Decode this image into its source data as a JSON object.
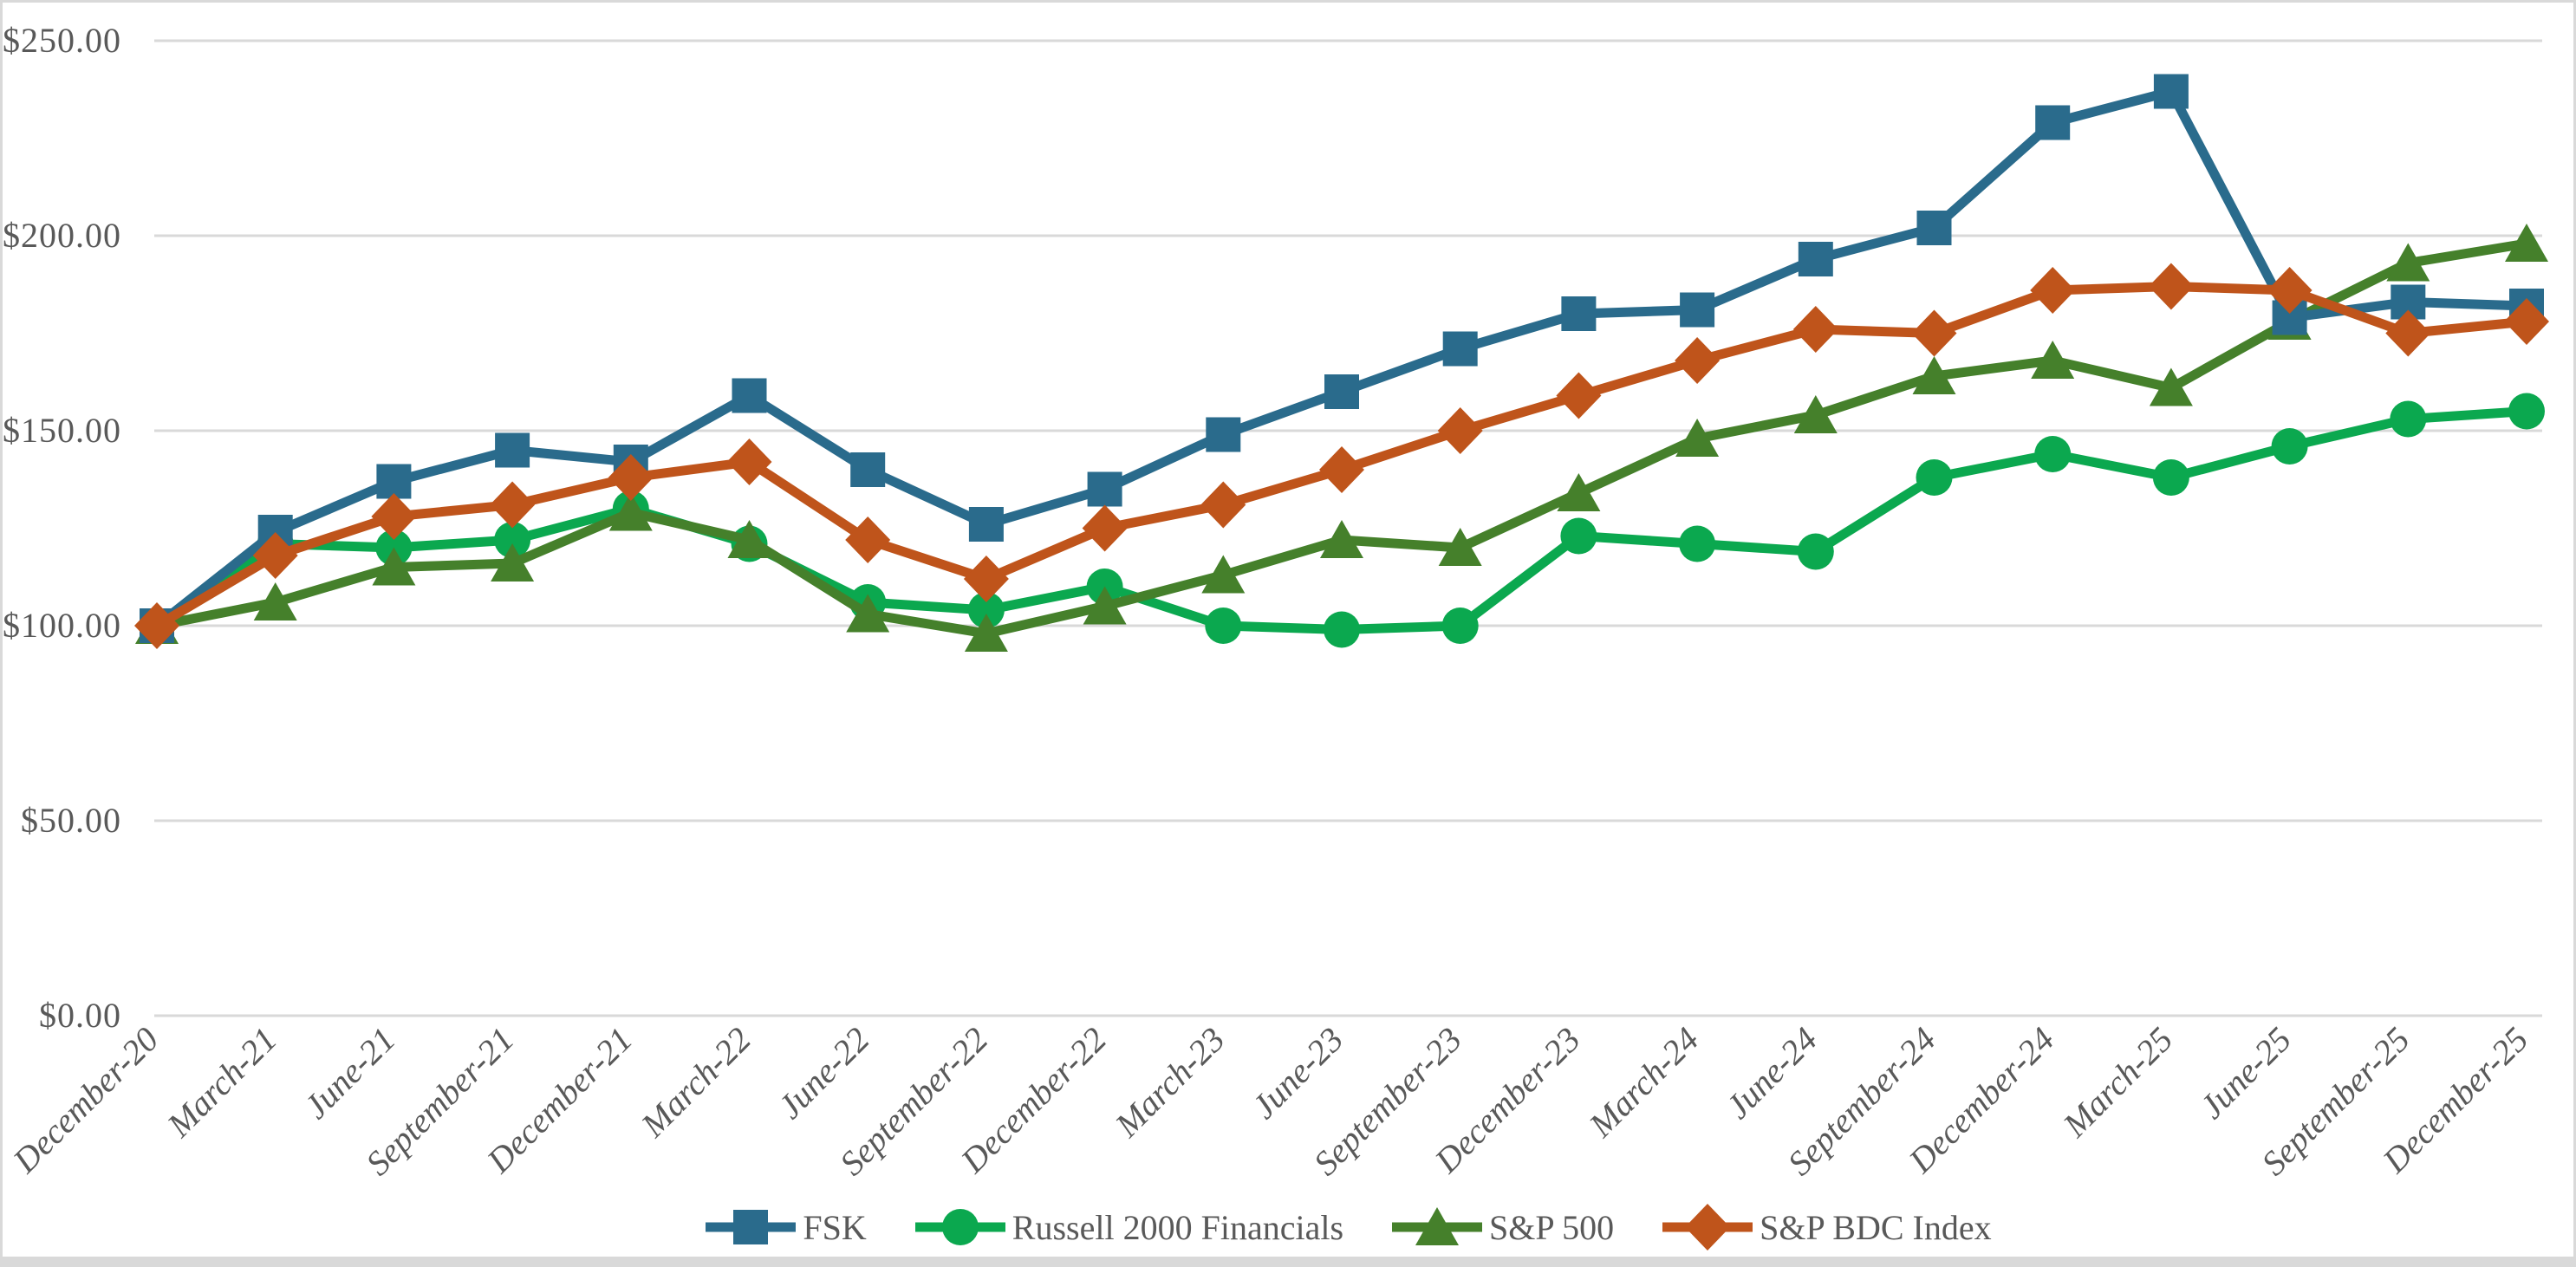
{
  "chart_data": {
    "type": "line",
    "title": "",
    "unit_prefix": "$",
    "categories": [
      "December-20",
      "March-21",
      "June-21",
      "September-21",
      "December-21",
      "March-22",
      "June-22",
      "September-22",
      "December-22",
      "March-23",
      "June-23",
      "September-23",
      "December-23",
      "March-24",
      "June-24",
      "September-24",
      "December-24",
      "March-25",
      "June-25",
      "September-25",
      "December-25"
    ],
    "series": [
      {
        "name": "FSK",
        "marker": "square",
        "color": "#2A6B8C",
        "values": [
          100,
          124,
          137,
          145,
          142,
          159,
          140,
          126,
          135,
          149,
          160,
          171,
          180,
          181,
          194,
          202,
          229,
          237,
          179,
          183,
          182
        ]
      },
      {
        "name": "Russell 2000 Financials",
        "marker": "circle",
        "color": "#0BA84F",
        "values": [
          100,
          121,
          120,
          122,
          130,
          121,
          106,
          104,
          110,
          100,
          99,
          100,
          123,
          121,
          119,
          138,
          144,
          138,
          146,
          153,
          155
        ]
      },
      {
        "name": "S&P 500",
        "marker": "triangle",
        "color": "#45802B",
        "values": [
          100,
          106,
          115,
          116,
          129,
          122,
          103,
          98,
          105,
          113,
          122,
          120,
          134,
          148,
          154,
          164,
          168,
          161,
          178,
          193,
          198
        ]
      },
      {
        "name": "S&P BDC Index",
        "marker": "diamond",
        "color": "#BF541B",
        "values": [
          100,
          118,
          128,
          131,
          138,
          142,
          122,
          112,
          125,
          131,
          140,
          150,
          159,
          168,
          176,
          175,
          186,
          187,
          186,
          175,
          178
        ]
      }
    ],
    "ylim": [
      0,
      250
    ],
    "y_tick_step": 50,
    "y_tick_labels": [
      "$250.00",
      "$200.00",
      "$150.00",
      "$100.00",
      "$50.00",
      "$0.00"
    ],
    "grid": "horizontal-only",
    "legend_position": "bottom-center",
    "xlabel": "",
    "ylabel": "",
    "colors": {
      "text": "#595959",
      "gridline": "#D9D9D9",
      "border": "#D9D9D9",
      "bottom_strip": "#D9D9D9",
      "background": "#FFFFFF"
    }
  }
}
